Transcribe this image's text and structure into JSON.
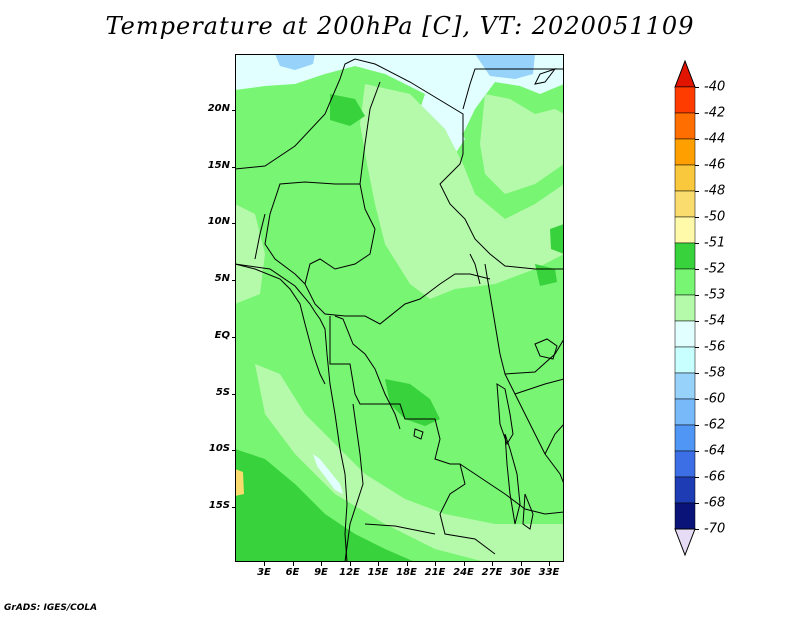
{
  "title": "Temperature at 200hPa [C], VT: 2020051109",
  "credit": "GrADS: IGES/COLA",
  "map": {
    "y_ticks": [
      "20N",
      "15N",
      "10N",
      "5N",
      "EQ",
      "5S",
      "10S",
      "15S"
    ],
    "x_ticks": [
      "3E",
      "6E",
      "9E",
      "12E",
      "15E",
      "18E",
      "21E",
      "24E",
      "27E",
      "30E",
      "33E"
    ],
    "colors": {
      "light_cyan": "#e0fffe",
      "light_blue": "#96d2fa",
      "pale_green": "#b4faaa",
      "mid_green": "#78f573",
      "green": "#37d23c",
      "yellow": "#fadc6e"
    }
  },
  "colorbar": {
    "labels": [
      "-40",
      "-42",
      "-44",
      "-46",
      "-48",
      "-50",
      "-51",
      "-52",
      "-53",
      "-54",
      "-56",
      "-58",
      "-60",
      "-62",
      "-64",
      "-66",
      "-68",
      "-70"
    ],
    "colors": [
      "#e11400",
      "#ff3c00",
      "#ff6e00",
      "#ffa000",
      "#fac83c",
      "#fadc6e",
      "#fffaaa",
      "#37d23c",
      "#78f573",
      "#b4faaa",
      "#e0fffe",
      "#c8ffff",
      "#96d2fa",
      "#78b9fa",
      "#5096f5",
      "#3c6ee6",
      "#1e3cb4",
      "#0a1478",
      "#e6dcf5"
    ]
  }
}
